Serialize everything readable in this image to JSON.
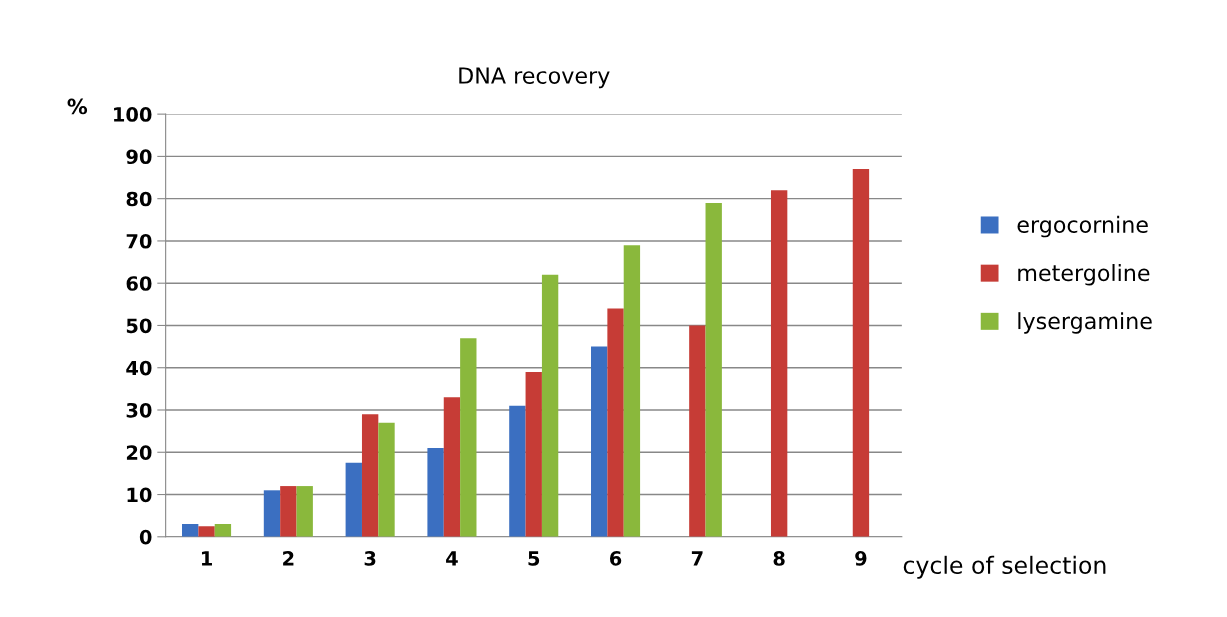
{
  "chart_data": {
    "type": "bar",
    "title": "DNA recovery",
    "xlabel": "cycle of selection",
    "ylabel": "%",
    "categories": [
      "1",
      "2",
      "3",
      "4",
      "5",
      "6",
      "7",
      "8",
      "9"
    ],
    "series": [
      {
        "name": "ergocornine",
        "color": "#3b6fc1",
        "values": [
          3,
          11,
          17.5,
          21,
          31,
          45,
          null,
          null,
          null
        ]
      },
      {
        "name": "metergoline",
        "color": "#c63c36",
        "values": [
          2.5,
          12,
          29,
          33,
          39,
          54,
          50,
          82,
          87
        ]
      },
      {
        "name": "lysergamine",
        "color": "#8ab83c",
        "values": [
          3,
          12,
          27,
          47,
          62,
          69,
          79,
          null,
          null
        ]
      }
    ],
    "ylim": [
      0,
      100
    ],
    "yticks": [
      0,
      10,
      20,
      30,
      40,
      50,
      60,
      70,
      80,
      90,
      100
    ],
    "grid": "y",
    "legend": "right"
  }
}
